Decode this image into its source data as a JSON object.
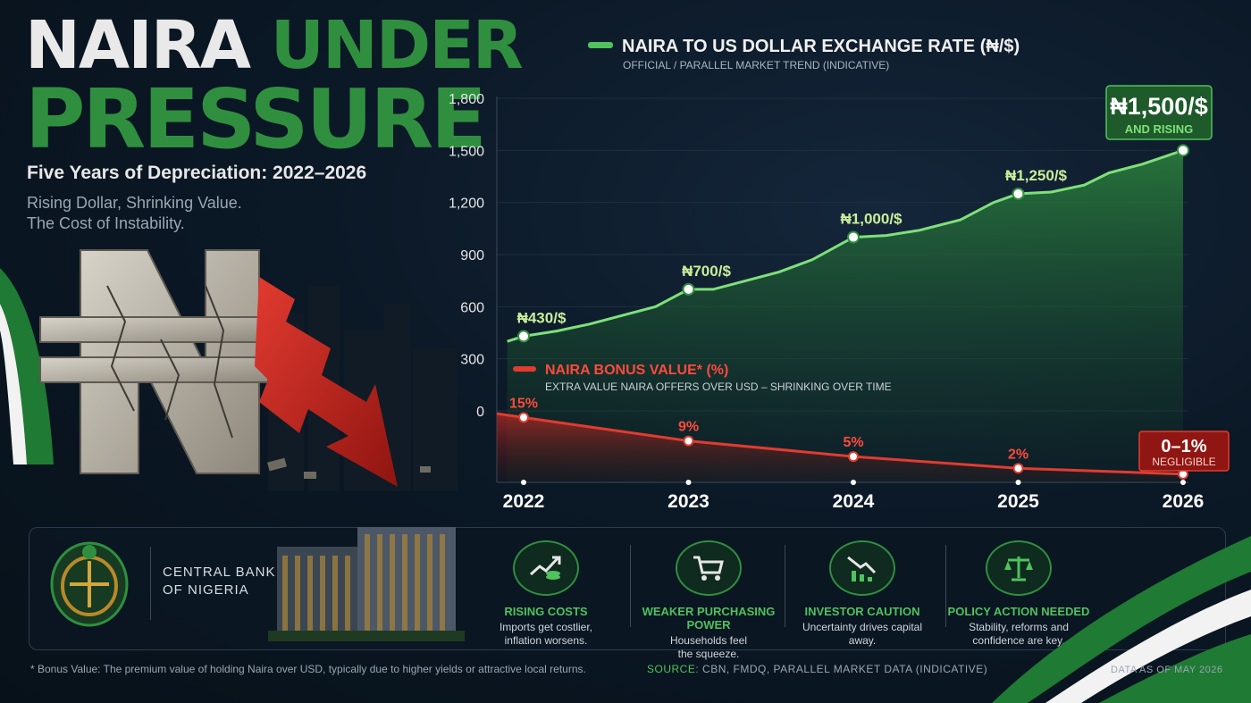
{
  "header": {
    "title_word1": "NAIRA",
    "title_word2": "UNDER",
    "title_line2": "PRESSURE",
    "subtitle": "Five Years of Depreciation: 2022–2026",
    "tagline_line1": "Rising Dollar, Shrinking Value.",
    "tagline_line2": "The Cost of Instability."
  },
  "colors": {
    "green": "#2f8f3f",
    "green_light": "#4fc25d",
    "red": "#d12a22",
    "background": "#0b1826"
  },
  "chart_data": [
    {
      "type": "area",
      "title": "NAIRA TO US DOLLAR EXCHANGE RATE (₦/$)",
      "subtitle": "OFFICIAL / PARALLEL MARKET TREND (INDICATIVE)",
      "x": [
        "2022",
        "2023",
        "2024",
        "2025",
        "2026"
      ],
      "y_ticks": [
        "1,800",
        "1,500",
        "1,200",
        "900",
        "600",
        "300",
        "0"
      ],
      "ylim": [
        0,
        1800
      ],
      "series": [
        {
          "values": [
            430,
            700,
            1000,
            1250,
            1500
          ],
          "labels": [
            "₦430/$",
            "₦700/$",
            "₦1,000/$",
            "₦1,250/$",
            "₦1,500/$"
          ]
        }
      ],
      "trend_line": [
        [
          2021.9,
          400
        ],
        [
          2022,
          430
        ],
        [
          2022.2,
          460
        ],
        [
          2022.4,
          500
        ],
        [
          2022.6,
          550
        ],
        [
          2022.8,
          600
        ],
        [
          2023,
          700
        ],
        [
          2023.15,
          700
        ],
        [
          2023.35,
          750
        ],
        [
          2023.55,
          800
        ],
        [
          2023.75,
          870
        ],
        [
          2024,
          1000
        ],
        [
          2024.2,
          1010
        ],
        [
          2024.4,
          1040
        ],
        [
          2024.65,
          1100
        ],
        [
          2024.85,
          1200
        ],
        [
          2025,
          1250
        ],
        [
          2025.2,
          1260
        ],
        [
          2025.4,
          1300
        ],
        [
          2025.55,
          1370
        ],
        [
          2025.75,
          1420
        ],
        [
          2026,
          1500
        ]
      ],
      "callout": {
        "value": "₦1,500/$",
        "note": "AND RISING"
      },
      "grid": true,
      "legend": "top-left"
    },
    {
      "type": "area",
      "title": "NAIRA BONUS VALUE* (%)",
      "subtitle": "EXTRA VALUE NAIRA OFFERS OVER USD – SHRINKING OVER TIME",
      "x": [
        "2022",
        "2023",
        "2024",
        "2025",
        "2026"
      ],
      "series": [
        {
          "values": [
            15,
            9,
            5,
            2,
            0.5
          ],
          "labels": [
            "15%",
            "9%",
            "5%",
            "2%",
            ""
          ]
        }
      ],
      "callout": {
        "value": "0–1%",
        "note": "NEGLIGIBLE"
      },
      "legend": "top-left"
    }
  ],
  "bottom": {
    "cbn_line1": "CENTRAL BANK",
    "cbn_line2": "OF NIGERIA",
    "impacts": [
      {
        "icon": "rising-costs-icon",
        "title": "RISING COSTS",
        "line1": "Imports get costlier,",
        "line2": "inflation worsens."
      },
      {
        "icon": "shopping-cart-icon",
        "title": "WEAKER PURCHASING POWER",
        "line1": "Households feel",
        "line2": "the squeeze."
      },
      {
        "icon": "declining-chart-icon",
        "title": "INVESTOR CAUTION",
        "line1": "Uncertainty drives capital",
        "line2": "away."
      },
      {
        "icon": "scales-icon",
        "title": "POLICY ACTION NEEDED",
        "line1": "Stability, reforms and",
        "line2": "confidence are key."
      }
    ]
  },
  "footer": {
    "footnote": "* Bonus Value: The premium value of holding Naira over USD, typically due to higher yields or attractive local returns.",
    "source_label": "SOURCE:",
    "source_text": "CBN, FMDQ, PARALLEL MARKET DATA (INDICATIVE)",
    "as_of": "DATA AS OF MAY 2026"
  }
}
